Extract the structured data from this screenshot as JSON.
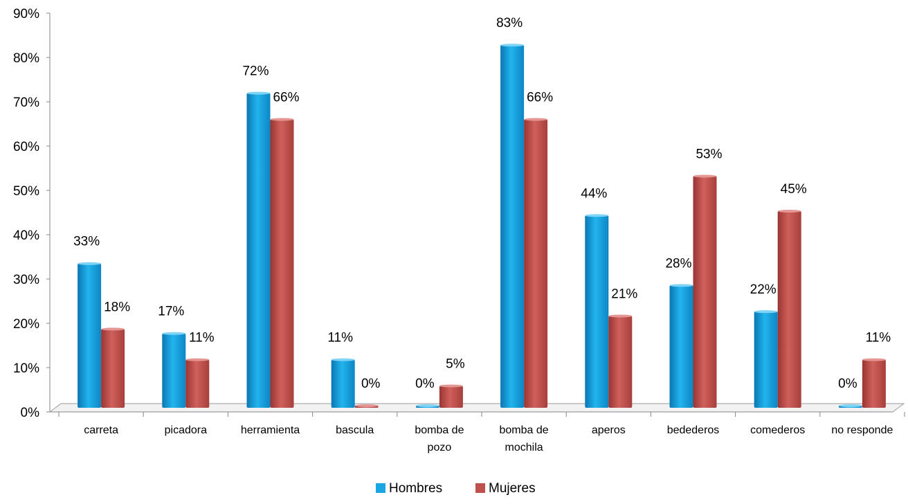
{
  "chart_data": {
    "type": "bar",
    "categories": [
      [
        "carreta"
      ],
      [
        "picadora"
      ],
      [
        "herramienta"
      ],
      [
        "bascula"
      ],
      [
        "bomba de",
        "pozo"
      ],
      [
        "bomba de",
        "mochila"
      ],
      [
        "aperos"
      ],
      [
        "bedederos"
      ],
      [
        "comederos"
      ],
      [
        "no responde"
      ]
    ],
    "series": [
      {
        "name": "Hombres",
        "color": "#1aa6e0",
        "values": [
          33,
          17,
          72,
          11,
          0,
          83,
          44,
          28,
          22,
          0
        ],
        "labels": [
          "33%",
          "17%",
          "72%",
          "11%",
          "0%",
          "83%",
          "44%",
          "28%",
          "22%",
          "0%"
        ]
      },
      {
        "name": "Mujeres",
        "color": "#c0504d",
        "values": [
          18,
          11,
          66,
          0,
          5,
          66,
          21,
          53,
          45,
          11
        ],
        "labels": [
          "18%",
          "11%",
          "66%",
          "0%",
          "5%",
          "66%",
          "21%",
          "53%",
          "45%",
          "11%"
        ]
      }
    ],
    "yticks": [
      "0%",
      "10%",
      "20%",
      "30%",
      "40%",
      "50%",
      "60%",
      "70%",
      "80%",
      "90%"
    ],
    "ylim": [
      0,
      90
    ],
    "grid": false,
    "legend_position": "bottom"
  }
}
